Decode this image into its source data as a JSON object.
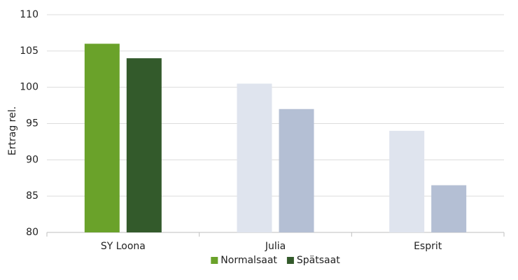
{
  "chart_data": {
    "type": "bar",
    "ylabel": "Ertrag rel.",
    "categories": [
      "SY Loona",
      "Julia",
      "Esprit"
    ],
    "series": [
      {
        "name": "Normalsaat",
        "color": "#6aa22a",
        "colors": [
          "#6aa22a",
          "#dfe4ee",
          "#dfe4ee"
        ],
        "values": [
          106,
          100.5,
          94
        ]
      },
      {
        "name": "Spätsaat",
        "color": "#335a2b",
        "colors": [
          "#335a2b",
          "#b4bfd4",
          "#b4bfd4"
        ],
        "values": [
          104,
          97,
          86.5
        ]
      }
    ],
    "ylim": [
      80,
      110
    ],
    "yticks": [
      80,
      85,
      90,
      95,
      100,
      105,
      110
    ],
    "grid": true,
    "legend": "bottom"
  }
}
